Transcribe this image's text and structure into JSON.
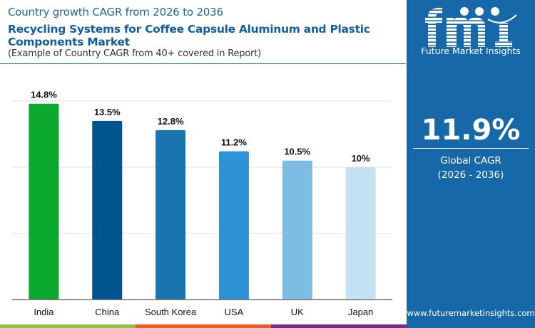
{
  "header": {
    "subtitle": "Country growth CAGR from 2026 to 2036",
    "title": "Recycling Systems for Coffee Capsule Aluminum and Plastic Components Market",
    "note": "(Example of Country CAGR from 40+ covered in Report)"
  },
  "chart_data": {
    "type": "bar",
    "categories": [
      "India",
      "China",
      "South Korea",
      "USA",
      "UK",
      "Japan"
    ],
    "values": [
      14.8,
      13.5,
      12.8,
      11.2,
      10.5,
      10
    ],
    "data_labels": [
      "14.8%",
      "13.5%",
      "12.8%",
      "11.2%",
      "10.5%",
      "10%"
    ],
    "colors": [
      "#0aa82e",
      "#00558e",
      "#1a74b0",
      "#2d93d6",
      "#7dbce3",
      "#c4e2f3"
    ],
    "ylim": [
      0,
      15
    ],
    "grid": true,
    "xlabel": "",
    "ylabel": ""
  },
  "panel": {
    "logo_text": "Future Market Insights",
    "global_value": "11.9%",
    "global_label": "Global CAGR",
    "global_period": "(2026 - 2036)",
    "url": "www.futuremarketinsights.com"
  },
  "stripe_colors": [
    "#8bc34a",
    "#e85d2a",
    "#7b2d8b"
  ]
}
